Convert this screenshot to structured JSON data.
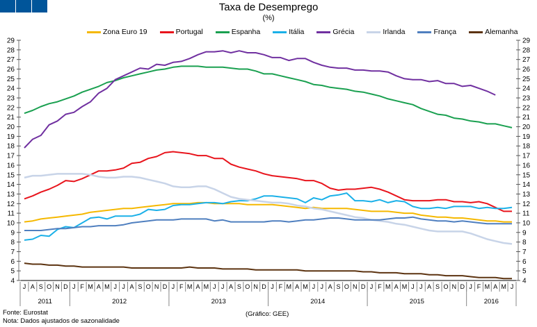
{
  "header": {
    "title": "Taxa de Desemprego",
    "unit": "(%)"
  },
  "footer": {
    "source": "Fonte: Eurostat",
    "note": "Nota: Dados ajustados de sazonalidade",
    "credit": "(Gráfico: GEE)"
  },
  "chart_data": {
    "type": "line",
    "title": "Taxa de Desemprego",
    "subtitle": "(%)",
    "xlabel": "",
    "ylabel": "",
    "ylim": [
      4,
      29
    ],
    "yticks": [
      4,
      5,
      6,
      7,
      8,
      9,
      10,
      11,
      12,
      13,
      14,
      15,
      16,
      17,
      18,
      19,
      20,
      21,
      22,
      23,
      24,
      25,
      26,
      27,
      28,
      29
    ],
    "legend_position": "top",
    "month_labels": [
      "J",
      "A",
      "S",
      "O",
      "N",
      "D",
      "J",
      "F",
      "M",
      "A",
      "M",
      "J",
      "J",
      "A",
      "S",
      "O",
      "N",
      "D",
      "J",
      "F",
      "M",
      "A",
      "M",
      "J",
      "J",
      "A",
      "S",
      "O",
      "N",
      "D",
      "J",
      "F",
      "M",
      "A",
      "M",
      "J",
      "J",
      "A",
      "S",
      "O",
      "N",
      "D",
      "J",
      "F",
      "M",
      "A",
      "M",
      "J",
      "J",
      "A",
      "S",
      "O",
      "N",
      "D",
      "J",
      "F",
      "M",
      "A",
      "M",
      "J"
    ],
    "years": [
      {
        "label": "2011",
        "start": 0,
        "end": 5
      },
      {
        "label": "2012",
        "start": 6,
        "end": 17
      },
      {
        "label": "2013",
        "start": 18,
        "end": 29
      },
      {
        "label": "2014",
        "start": 30,
        "end": 41
      },
      {
        "label": "2015",
        "start": 42,
        "end": 53
      },
      {
        "label": "2016",
        "start": 54,
        "end": 59
      }
    ],
    "series": [
      {
        "name": "Zona Euro 19",
        "color": "#f5b800",
        "values": [
          10.1,
          10.2,
          10.4,
          10.5,
          10.6,
          10.7,
          10.8,
          10.9,
          11.1,
          11.2,
          11.3,
          11.4,
          11.5,
          11.5,
          11.6,
          11.7,
          11.8,
          11.9,
          12.0,
          12.0,
          12.0,
          12.1,
          12.1,
          12.0,
          12.0,
          12.0,
          12.0,
          11.9,
          11.9,
          11.9,
          11.9,
          11.8,
          11.7,
          11.6,
          11.5,
          11.6,
          11.5,
          11.5,
          11.5,
          11.5,
          11.4,
          11.3,
          11.2,
          11.2,
          11.2,
          11.1,
          11.0,
          11.0,
          10.8,
          10.7,
          10.6,
          10.6,
          10.5,
          10.5,
          10.4,
          10.3,
          10.2,
          10.2,
          10.1,
          10.1
        ]
      },
      {
        "name": "Portugal",
        "color": "#e8141c",
        "values": [
          12.5,
          12.8,
          13.2,
          13.5,
          13.9,
          14.4,
          14.3,
          14.6,
          15.0,
          15.4,
          15.4,
          15.5,
          15.7,
          16.2,
          16.3,
          16.7,
          16.9,
          17.3,
          17.4,
          17.3,
          17.2,
          17.0,
          17.0,
          16.7,
          16.7,
          16.1,
          15.8,
          15.6,
          15.4,
          15.1,
          14.9,
          14.8,
          14.7,
          14.6,
          14.4,
          14.4,
          14.1,
          13.6,
          13.4,
          13.5,
          13.5,
          13.6,
          13.7,
          13.5,
          13.2,
          12.8,
          12.4,
          12.3,
          12.3,
          12.3,
          12.4,
          12.4,
          12.2,
          12.2,
          12.1,
          12.2,
          12.0,
          11.6,
          11.2,
          11.2
        ]
      },
      {
        "name": "Espanha",
        "color": "#1aa050",
        "values": [
          21.4,
          21.7,
          22.1,
          22.4,
          22.6,
          22.9,
          23.2,
          23.6,
          23.9,
          24.2,
          24.6,
          24.8,
          25.1,
          25.3,
          25.5,
          25.7,
          25.9,
          26.0,
          26.2,
          26.3,
          26.3,
          26.3,
          26.2,
          26.2,
          26.2,
          26.1,
          26.0,
          26.0,
          25.8,
          25.5,
          25.5,
          25.3,
          25.1,
          24.9,
          24.7,
          24.4,
          24.3,
          24.1,
          24.0,
          23.9,
          23.7,
          23.6,
          23.4,
          23.2,
          22.9,
          22.7,
          22.5,
          22.3,
          21.9,
          21.6,
          21.3,
          21.2,
          20.9,
          20.8,
          20.6,
          20.5,
          20.3,
          20.3,
          20.1,
          19.9
        ]
      },
      {
        "name": "Itália",
        "color": "#1ab0e8",
        "values": [
          8.2,
          8.3,
          8.7,
          8.6,
          9.3,
          9.6,
          9.5,
          10.0,
          10.5,
          10.6,
          10.4,
          10.7,
          10.7,
          10.7,
          10.9,
          11.4,
          11.3,
          11.4,
          11.8,
          11.9,
          11.9,
          12.0,
          12.1,
          12.1,
          12.0,
          12.2,
          12.3,
          12.3,
          12.5,
          12.8,
          12.8,
          12.7,
          12.6,
          12.5,
          12.1,
          12.6,
          12.4,
          12.8,
          12.9,
          13.1,
          12.3,
          12.3,
          12.2,
          12.4,
          12.1,
          12.3,
          12.2,
          11.7,
          11.5,
          11.5,
          11.6,
          11.5,
          11.7,
          11.7,
          11.7,
          11.5,
          11.6,
          11.5,
          11.5,
          11.6
        ]
      },
      {
        "name": "Grécia",
        "color": "#7030a0",
        "values": [
          17.8,
          18.7,
          19.1,
          20.2,
          20.6,
          21.3,
          21.5,
          22.1,
          22.6,
          23.5,
          24.0,
          24.9,
          25.3,
          25.7,
          26.1,
          26.0,
          26.5,
          26.4,
          26.7,
          26.8,
          27.1,
          27.5,
          27.8,
          27.8,
          27.9,
          27.7,
          27.9,
          27.7,
          27.7,
          27.5,
          27.2,
          27.2,
          26.9,
          27.1,
          27.1,
          26.7,
          26.4,
          26.2,
          26.1,
          26.1,
          25.9,
          25.9,
          25.8,
          25.8,
          25.7,
          25.3,
          25.0,
          24.9,
          24.9,
          24.7,
          24.8,
          24.5,
          24.5,
          24.2,
          24.3,
          24.0,
          23.7,
          23.3,
          null,
          null
        ]
      },
      {
        "name": "Irlanda",
        "color": "#c8d4e8",
        "values": [
          14.7,
          14.9,
          14.9,
          15.0,
          15.1,
          15.1,
          15.1,
          15.1,
          15.0,
          14.8,
          14.7,
          14.7,
          14.8,
          14.8,
          14.7,
          14.5,
          14.3,
          14.1,
          13.8,
          13.7,
          13.7,
          13.8,
          13.8,
          13.5,
          13.1,
          12.7,
          12.5,
          12.4,
          12.3,
          12.2,
          12.1,
          12.1,
          12.0,
          11.8,
          11.7,
          11.5,
          11.4,
          11.2,
          11.0,
          10.8,
          10.6,
          10.5,
          10.3,
          10.2,
          10.1,
          9.9,
          9.8,
          9.6,
          9.4,
          9.2,
          9.1,
          9.1,
          9.1,
          9.1,
          8.9,
          8.6,
          8.3,
          8.1,
          7.9,
          7.8
        ]
      },
      {
        "name": "França",
        "color": "#4f7fbf",
        "values": [
          9.2,
          9.2,
          9.2,
          9.3,
          9.4,
          9.4,
          9.5,
          9.6,
          9.6,
          9.7,
          9.7,
          9.7,
          9.8,
          10.0,
          10.1,
          10.2,
          10.3,
          10.3,
          10.3,
          10.4,
          10.4,
          10.4,
          10.4,
          10.2,
          10.3,
          10.1,
          10.1,
          10.1,
          10.1,
          10.1,
          10.2,
          10.2,
          10.1,
          10.2,
          10.3,
          10.3,
          10.4,
          10.5,
          10.5,
          10.4,
          10.3,
          10.3,
          10.3,
          10.3,
          10.4,
          10.5,
          10.5,
          10.6,
          10.4,
          10.3,
          10.2,
          10.2,
          10.1,
          10.2,
          10.1,
          10.0,
          9.9,
          9.9,
          9.9,
          9.9
        ]
      },
      {
        "name": "Alemanha",
        "color": "#5c3310",
        "values": [
          5.8,
          5.7,
          5.7,
          5.6,
          5.6,
          5.5,
          5.5,
          5.4,
          5.4,
          5.4,
          5.4,
          5.4,
          5.4,
          5.3,
          5.3,
          5.3,
          5.3,
          5.3,
          5.3,
          5.3,
          5.4,
          5.3,
          5.3,
          5.3,
          5.2,
          5.2,
          5.2,
          5.2,
          5.1,
          5.1,
          5.1,
          5.1,
          5.1,
          5.1,
          5.0,
          5.0,
          5.0,
          5.0,
          5.0,
          5.0,
          5.0,
          4.9,
          4.9,
          4.8,
          4.8,
          4.8,
          4.7,
          4.7,
          4.7,
          4.6,
          4.6,
          4.5,
          4.5,
          4.5,
          4.4,
          4.3,
          4.3,
          4.3,
          4.2,
          4.2
        ]
      }
    ]
  }
}
